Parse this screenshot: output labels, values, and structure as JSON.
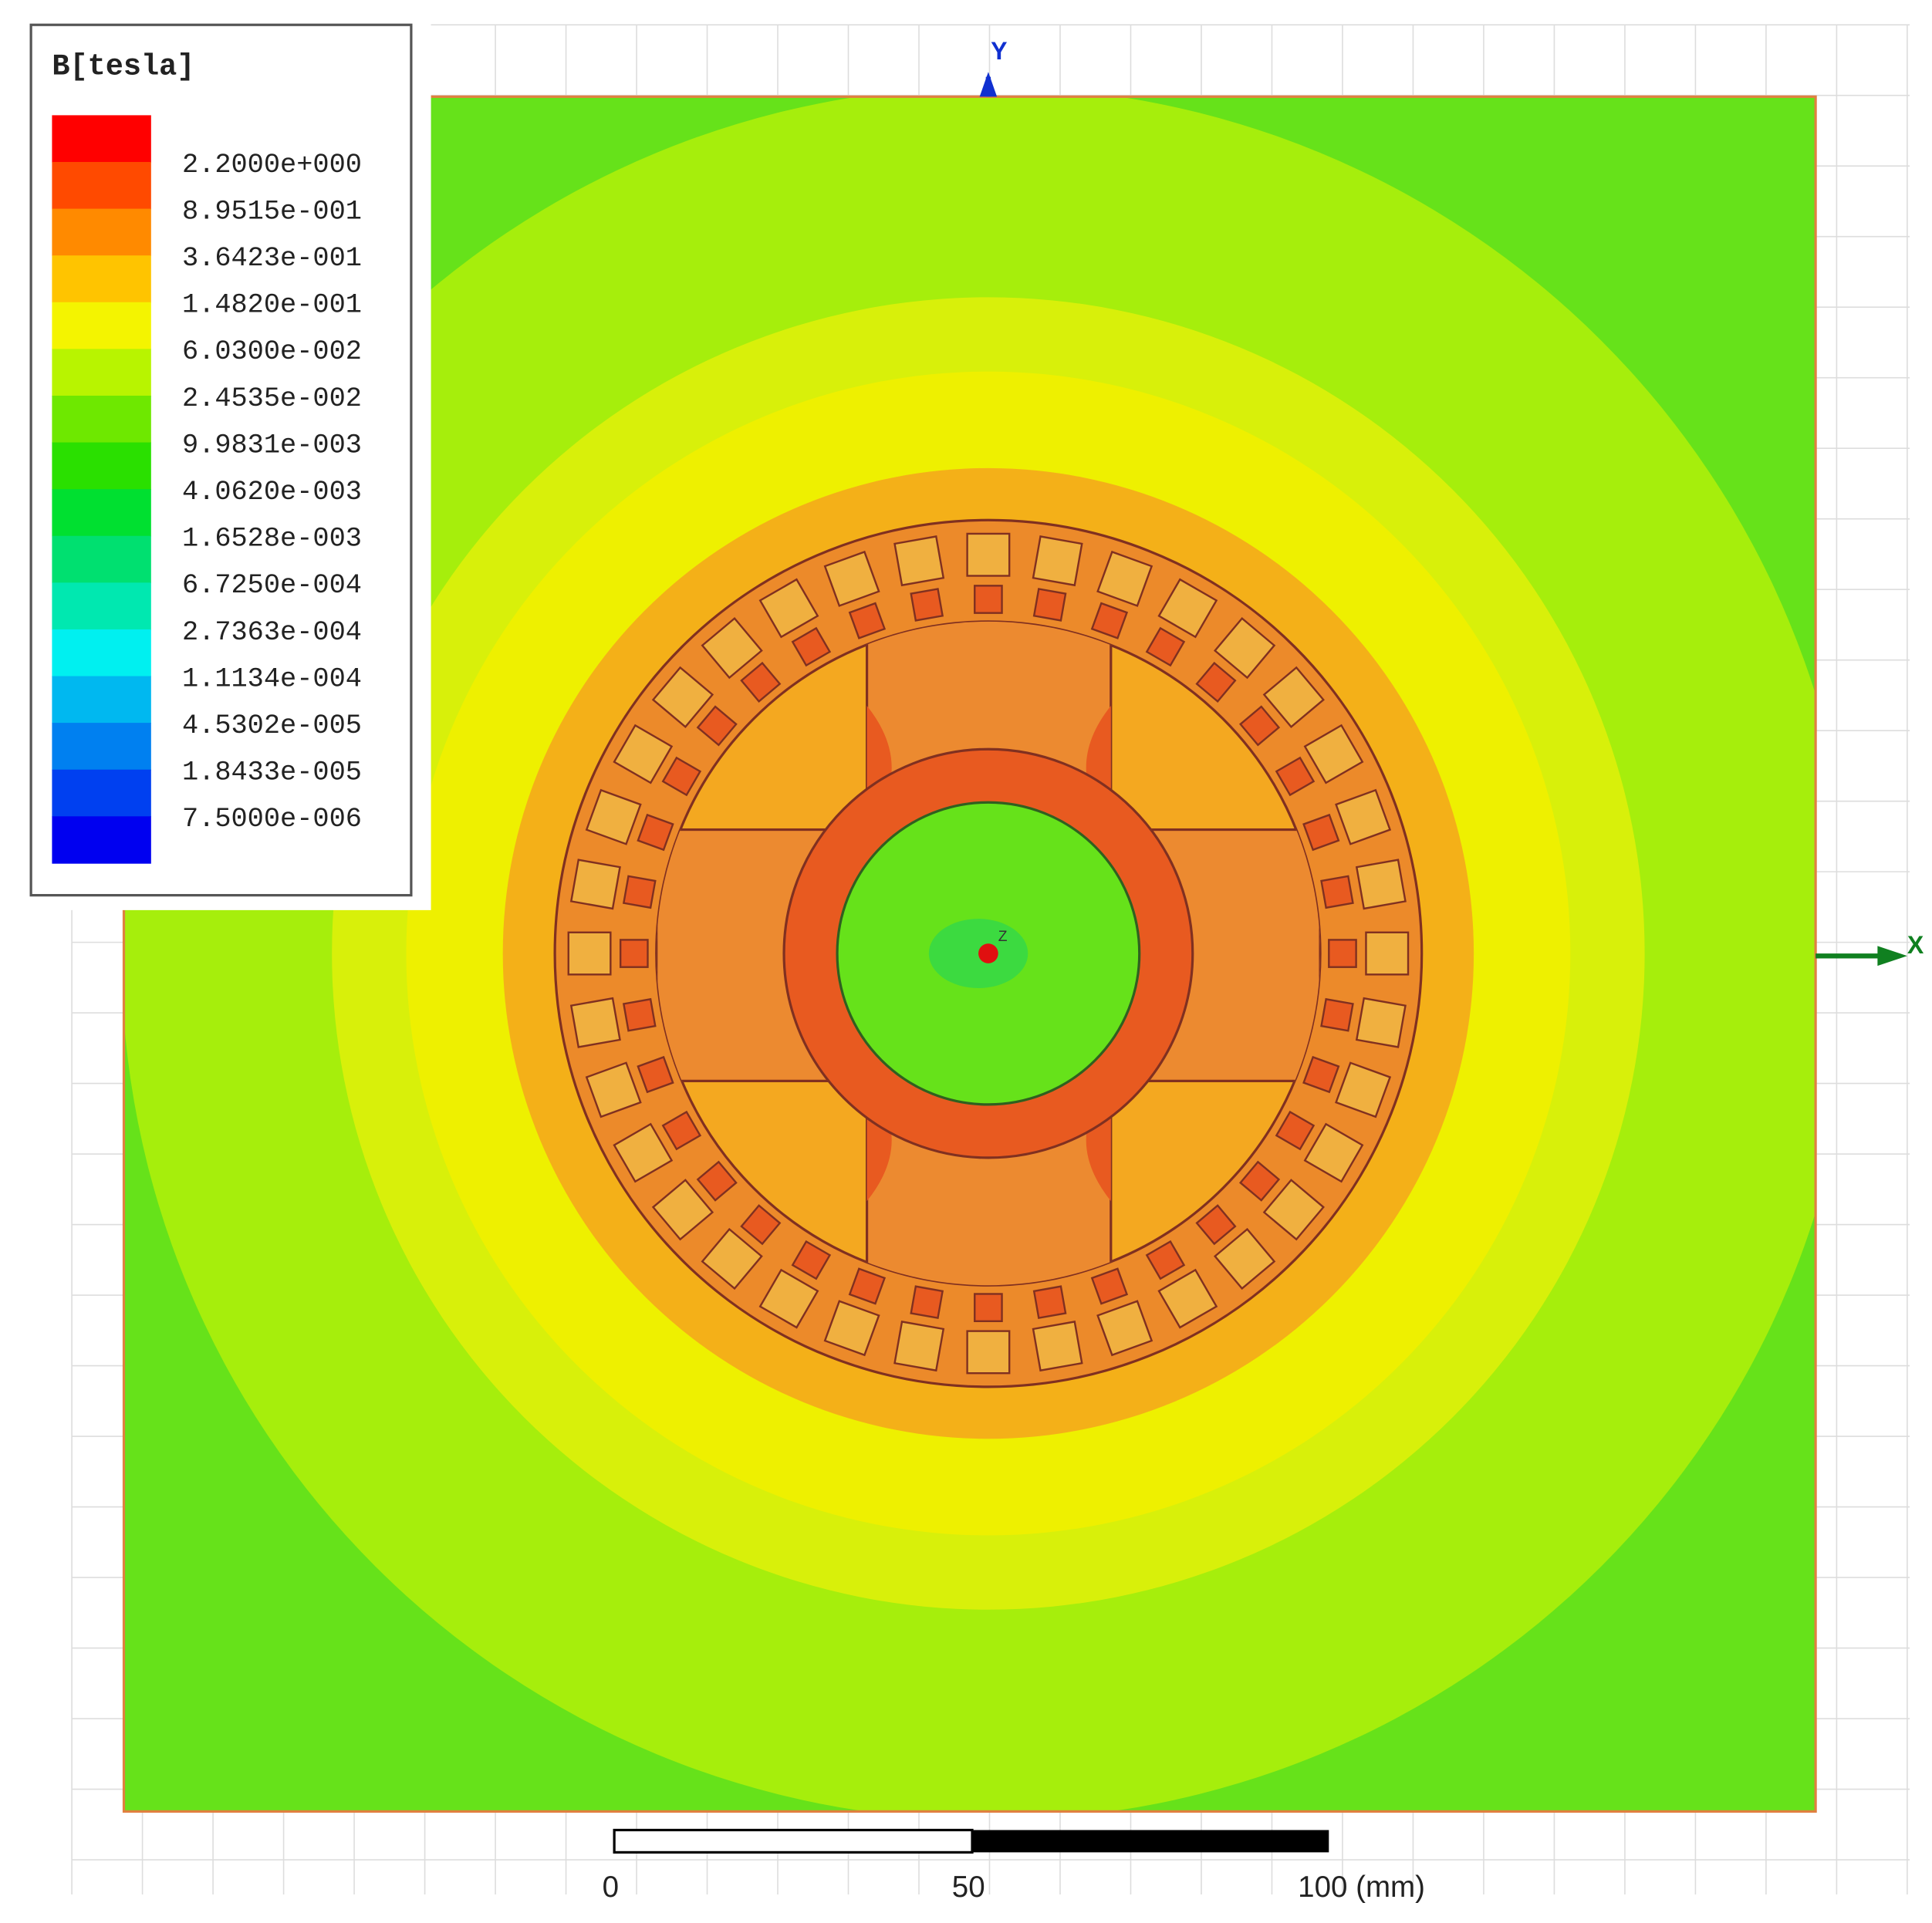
{
  "legend": {
    "title": "B[tesla]",
    "labels": [
      "2.2000e+000",
      "8.9515e-001",
      "3.6423e-001",
      "1.4820e-001",
      "6.0300e-002",
      "2.4535e-002",
      "9.9831e-003",
      "4.0620e-003",
      "1.6528e-003",
      "6.7250e-004",
      "2.7363e-004",
      "1.1134e-004",
      "4.5302e-005",
      "1.8433e-005",
      "7.5000e-006"
    ],
    "colors": [
      "#ff0000",
      "#ff4a00",
      "#ff8a00",
      "#ffc400",
      "#f4f400",
      "#b8f400",
      "#6ee800",
      "#2ae000",
      "#00e030",
      "#00e070",
      "#00e8b0",
      "#00f0f0",
      "#00b8f0",
      "#0080f0",
      "#0040f0",
      "#0000f0"
    ]
  },
  "axes": {
    "x": "X",
    "y": "Y",
    "z": "Z"
  },
  "scale_bar": {
    "labels": [
      "0",
      "50",
      "100 (mm)"
    ]
  }
}
